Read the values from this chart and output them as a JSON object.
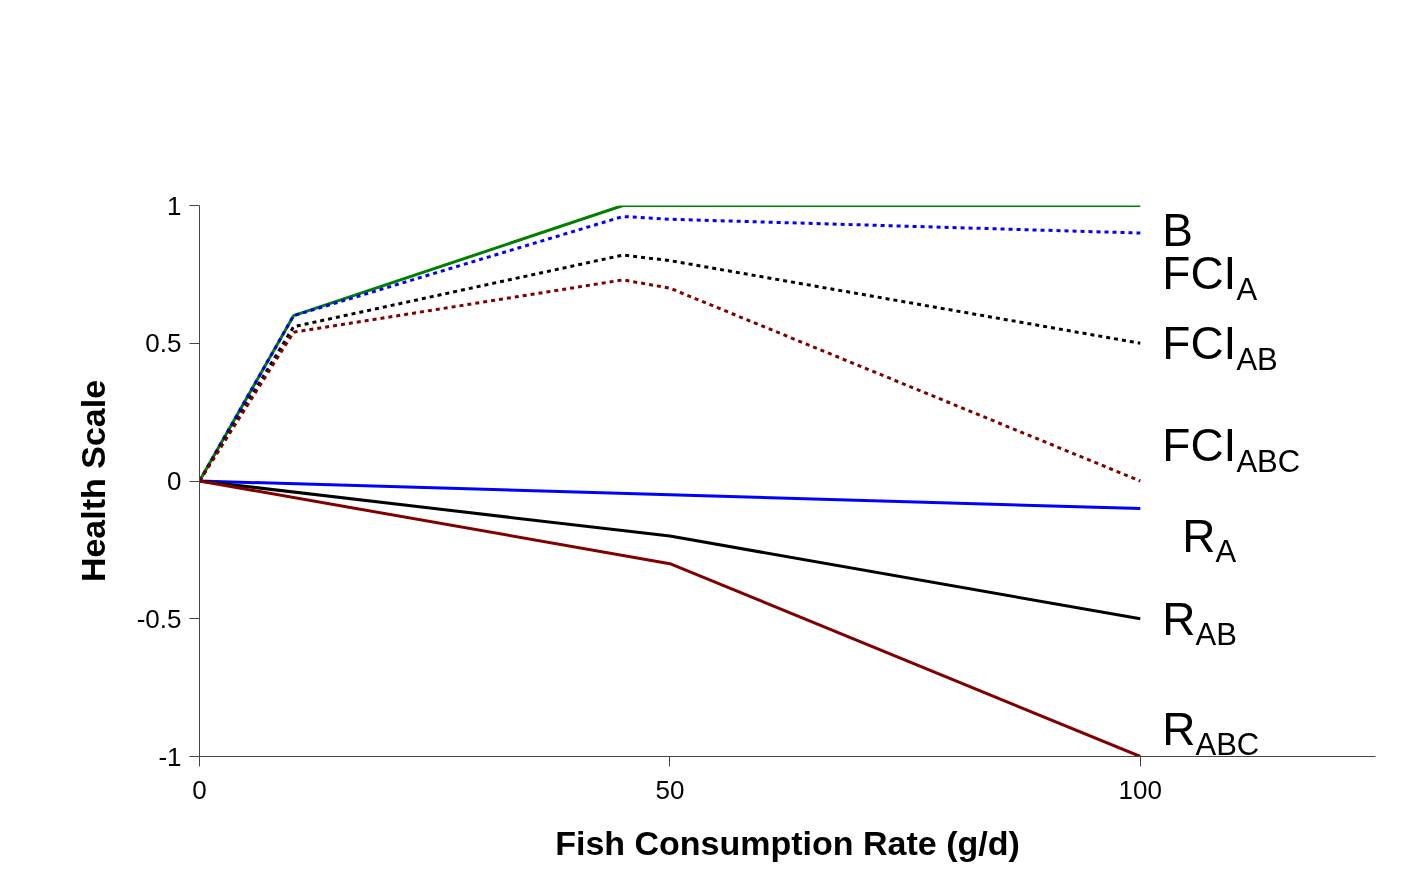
{
  "chart_data": {
    "type": "line",
    "xlabel": "Fish Consumption Rate (g/d)",
    "ylabel": "Health Scale",
    "xlim": [
      0,
      125
    ],
    "xticks": [
      0,
      50,
      100
    ],
    "ylim": [
      -1,
      1
    ],
    "yticks": [
      -1,
      -0.5,
      0,
      0.5,
      1
    ],
    "grid": false,
    "series": [
      {
        "name": "B",
        "color": "#008000",
        "line_style": "solid",
        "x": [
          0,
          10,
          45,
          100
        ],
        "values": [
          0,
          0.6,
          1,
          1
        ]
      },
      {
        "name": "FCI$_{A}$",
        "color": "#0000ff",
        "line_style": "dotted",
        "x": [
          0,
          10,
          45,
          50,
          100
        ],
        "values": [
          0,
          0.6,
          0.96,
          0.95,
          0.9
        ]
      },
      {
        "name": "FCI$_{AB}$",
        "color": "#000000",
        "line_style": "dotted",
        "x": [
          0,
          10,
          45,
          50,
          100
        ],
        "values": [
          0,
          0.56,
          0.82,
          0.8,
          0.5
        ]
      },
      {
        "name": "FCI$_{ABC}$",
        "color": "#800000",
        "line_style": "dotted",
        "x": [
          0,
          10,
          45,
          50,
          100
        ],
        "values": [
          0,
          0.54,
          0.73,
          0.7,
          0
        ]
      },
      {
        "name": "R$_{A}$",
        "color": "#0000ff",
        "line_style": "solid",
        "x": [
          0,
          50,
          100
        ],
        "values": [
          0,
          -0.05,
          -0.1
        ]
      },
      {
        "name": "R$_{AB}$",
        "color": "#000000",
        "line_style": "solid",
        "x": [
          0,
          50,
          100
        ],
        "values": [
          0,
          -0.2,
          -0.5
        ]
      },
      {
        "name": "R$_{ABC}$",
        "color": "#800000",
        "line_style": "solid",
        "x": [
          0,
          50,
          100
        ],
        "values": [
          0,
          -0.3,
          -1
        ]
      }
    ]
  }
}
